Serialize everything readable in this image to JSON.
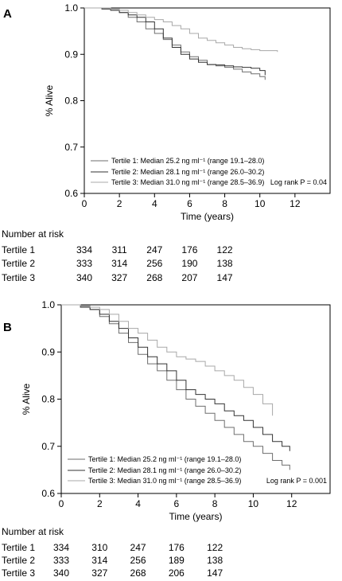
{
  "chart_data": [
    {
      "type": "line",
      "panel_label": "A",
      "xlabel": "Time (years)",
      "ylabel": "% Alive",
      "xlim": [
        0,
        14
      ],
      "ylim": [
        0.6,
        1.0
      ],
      "x_ticks": [
        "0",
        "2",
        "4",
        "6",
        "8",
        "10",
        "12"
      ],
      "y_ticks": [
        "0.6",
        "0.7",
        "0.8",
        "0.9",
        "1.0"
      ],
      "grid": false,
      "legend_position": "bottom-left",
      "annotation": "Log rank P = 0.04",
      "series": [
        {
          "name": "Tertile 1: Median 25.2 ng ml⁻¹ (range 19.1–28.0)",
          "color": "#6e6e6e",
          "x": [
            0,
            0.5,
            1,
            1.5,
            2,
            2.5,
            3,
            3.5,
            4,
            4.5,
            5,
            5.5,
            6,
            6.5,
            7,
            7.5,
            8,
            8.5,
            9,
            9.5,
            10,
            10.3
          ],
          "y": [
            1.0,
            1.0,
            0.998,
            0.995,
            0.99,
            0.98,
            0.97,
            0.955,
            0.945,
            0.932,
            0.92,
            0.905,
            0.895,
            0.887,
            0.878,
            0.875,
            0.872,
            0.868,
            0.862,
            0.858,
            0.852,
            0.845
          ]
        },
        {
          "name": "Tertile 2: Median 28.1 ng ml⁻¹ (range 26.0–30.2)",
          "color": "#333333",
          "x": [
            0,
            0.5,
            1,
            1.5,
            2,
            2.5,
            3,
            3.5,
            4,
            4.5,
            5,
            5.5,
            6,
            6.5,
            7,
            7.5,
            8,
            8.5,
            9,
            9.5,
            10,
            10.3
          ],
          "y": [
            1.0,
            1.0,
            0.998,
            0.995,
            0.99,
            0.985,
            0.98,
            0.97,
            0.955,
            0.935,
            0.915,
            0.9,
            0.89,
            0.883,
            0.878,
            0.877,
            0.875,
            0.873,
            0.872,
            0.87,
            0.865,
            0.855
          ]
        },
        {
          "name": "Tertile 3: Median 31.0 ng ml⁻¹ (range 28.5–36.9)",
          "color": "#a8a8a8",
          "x": [
            0,
            0.5,
            1,
            1.5,
            2,
            2.5,
            3,
            3.5,
            4,
            4.5,
            5,
            5.5,
            6,
            6.5,
            7,
            7.5,
            8,
            8.5,
            9,
            9.5,
            10,
            10.5,
            11
          ],
          "y": [
            1.0,
            1.0,
            1.0,
            0.998,
            0.995,
            0.99,
            0.985,
            0.98,
            0.975,
            0.97,
            0.962,
            0.955,
            0.945,
            0.935,
            0.93,
            0.925,
            0.92,
            0.915,
            0.912,
            0.91,
            0.908,
            0.908,
            0.905
          ]
        }
      ],
      "risk_table": {
        "title": "Number at risk",
        "rows": [
          {
            "label": "Tertile 1",
            "values": [
              "334",
              "311",
              "247",
              "176",
              "122"
            ]
          },
          {
            "label": "Tertile 2",
            "values": [
              "333",
              "314",
              "256",
              "190",
              "138"
            ]
          },
          {
            "label": "Tertile 3",
            "values": [
              "340",
              "327",
              "268",
              "207",
              "147"
            ]
          }
        ]
      }
    },
    {
      "type": "line",
      "panel_label": "B",
      "xlabel": "Time (years)",
      "ylabel": "% Alive",
      "xlim": [
        0,
        14
      ],
      "ylim": [
        0.6,
        1.0
      ],
      "x_ticks": [
        "0",
        "2",
        "4",
        "6",
        "8",
        "10",
        "12"
      ],
      "y_ticks": [
        "0.6",
        "0.7",
        "0.8",
        "0.9",
        "1.0"
      ],
      "grid": false,
      "legend_position": "bottom-left",
      "annotation": "Log rank P = 0.001",
      "series": [
        {
          "name": "Tertile 1: Median 25.2 ng ml⁻¹ (range 19.1–28.0)",
          "color": "#6e6e6e",
          "x": [
            0,
            0.5,
            1,
            1.5,
            2,
            2.5,
            3,
            3.5,
            4,
            4.5,
            5,
            5.5,
            6,
            6.5,
            7,
            7.5,
            8,
            8.5,
            9,
            9.5,
            10,
            10.5,
            11,
            11.5,
            11.9
          ],
          "y": [
            1.0,
            1.0,
            0.997,
            0.99,
            0.975,
            0.96,
            0.94,
            0.92,
            0.895,
            0.875,
            0.86,
            0.84,
            0.82,
            0.8,
            0.785,
            0.77,
            0.755,
            0.74,
            0.725,
            0.71,
            0.7,
            0.685,
            0.67,
            0.66,
            0.65
          ]
        },
        {
          "name": "Tertile 2: Median 28.1 ng ml⁻¹ (range 26.0–30.2)",
          "color": "#333333",
          "x": [
            0,
            0.5,
            1,
            1.5,
            2,
            2.5,
            3,
            3.5,
            4,
            4.5,
            5,
            5.5,
            6,
            6.5,
            7,
            7.5,
            8,
            8.5,
            9,
            9.5,
            10,
            10.5,
            11,
            11.5,
            11.9
          ],
          "y": [
            1.0,
            1.0,
            0.995,
            0.99,
            0.98,
            0.965,
            0.95,
            0.93,
            0.91,
            0.89,
            0.875,
            0.86,
            0.84,
            0.82,
            0.81,
            0.8,
            0.79,
            0.775,
            0.765,
            0.755,
            0.74,
            0.725,
            0.71,
            0.7,
            0.69
          ]
        },
        {
          "name": "Tertile 3: Median 31.0 ng ml⁻¹ (range 28.5–36.9)",
          "color": "#a8a8a8",
          "x": [
            0,
            0.5,
            1,
            1.5,
            2,
            2.5,
            3,
            3.5,
            4,
            4.5,
            5,
            5.5,
            6,
            6.5,
            7,
            7.5,
            8,
            8.5,
            9,
            9.5,
            10,
            10.5,
            11
          ],
          "y": [
            1.0,
            1.0,
            0.998,
            0.995,
            0.99,
            0.98,
            0.965,
            0.95,
            0.94,
            0.925,
            0.91,
            0.9,
            0.89,
            0.885,
            0.88,
            0.87,
            0.86,
            0.85,
            0.84,
            0.825,
            0.81,
            0.79,
            0.765
          ]
        }
      ],
      "risk_table": {
        "title": "Number at risk",
        "rows": [
          {
            "label": "Tertile 1",
            "values": [
              "334",
              "310",
              "247",
              "176",
              "122"
            ]
          },
          {
            "label": "Tertile 2",
            "values": [
              "333",
              "314",
              "256",
              "189",
              "138"
            ]
          },
          {
            "label": "Tertile 3",
            "values": [
              "340",
              "327",
              "268",
              "206",
              "147"
            ]
          }
        ]
      }
    }
  ]
}
